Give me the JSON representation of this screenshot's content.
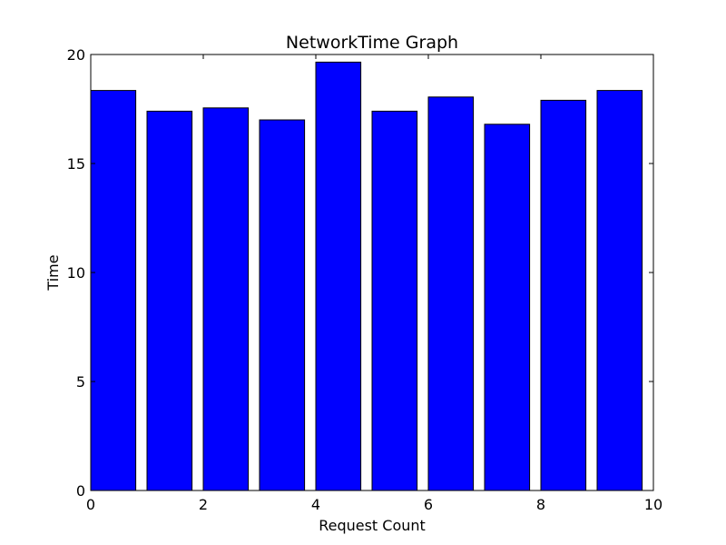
{
  "chart_data": {
    "type": "bar",
    "title": "NetworkTime Graph",
    "xlabel": "Request Count",
    "ylabel": "Time",
    "xlim": [
      0,
      10
    ],
    "ylim": [
      0,
      20
    ],
    "x_ticks": [
      "0",
      "2",
      "4",
      "6",
      "8",
      "10"
    ],
    "y_ticks": [
      "0",
      "5",
      "10",
      "15",
      "20"
    ],
    "bar_width": 0.8,
    "categories": [
      0,
      1,
      2,
      3,
      4,
      5,
      6,
      7,
      8,
      9
    ],
    "values": [
      18.35,
      17.4,
      17.55,
      17.0,
      19.65,
      17.4,
      18.05,
      16.8,
      17.9,
      18.35
    ],
    "grid": false,
    "legend": "none",
    "bar_color": "#0000ff",
    "edge_color": "#000000"
  }
}
